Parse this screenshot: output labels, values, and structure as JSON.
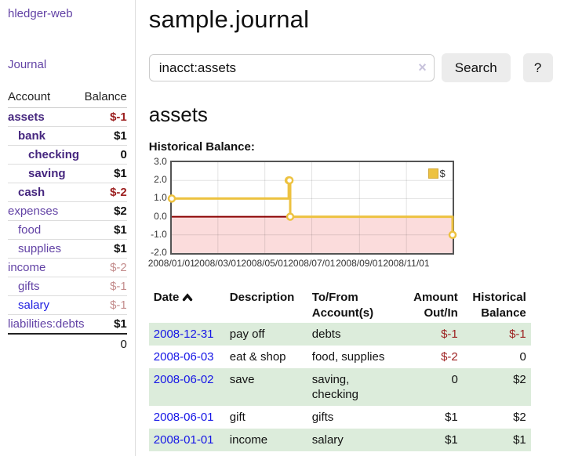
{
  "theme": {
    "link_purple": "#6242a5",
    "link_purple_bold": "#46277f",
    "link_blue": "#1d1de0",
    "date_link_blue": "#1515e6",
    "negative_strong": "#9c1f1f",
    "negative_faded": "#c48d8d",
    "row_stripe_green": "#dcecdb",
    "chart_line_gold": "#edc240",
    "chart_border_gray": "#545454",
    "chart_negative_fill": "#fbdcdc",
    "chart_zero_line": "#8b0000"
  },
  "sidebar": {
    "brand": "hledger-web",
    "nav_journal": "Journal",
    "accounts": {
      "header_account": "Account",
      "header_balance": "Balance",
      "rows": [
        {
          "name": "assets",
          "indent": 0,
          "bold": true,
          "balance": "$-1",
          "neg": "strong"
        },
        {
          "name": "bank",
          "indent": 1,
          "bold": true,
          "balance": "$1",
          "neg": null
        },
        {
          "name": "checking",
          "indent": 2,
          "bold": true,
          "balance": "0",
          "neg": null
        },
        {
          "name": "saving",
          "indent": 2,
          "bold": true,
          "balance": "$1",
          "neg": null
        },
        {
          "name": "cash",
          "indent": 1,
          "bold": true,
          "balance": "$-2",
          "neg": "strong"
        },
        {
          "name": "expenses",
          "indent": 0,
          "bold": false,
          "balance": "$2",
          "neg": null
        },
        {
          "name": "food",
          "indent": 1,
          "bold": false,
          "balance": "$1",
          "neg": null
        },
        {
          "name": "supplies",
          "indent": 1,
          "bold": false,
          "balance": "$1",
          "neg": null
        },
        {
          "name": "income",
          "indent": 0,
          "bold": false,
          "balance": "$-2",
          "neg": "faded"
        },
        {
          "name": "gifts",
          "indent": 1,
          "bold": false,
          "balance": "$-1",
          "neg": "faded"
        },
        {
          "name": "salary",
          "indent": 1,
          "bold": false,
          "balance": "$-1",
          "neg": "faded",
          "blue": true
        },
        {
          "name": "liabilities:debts",
          "indent": 0,
          "bold": false,
          "balance": "$1",
          "neg": null
        }
      ],
      "total": "0"
    }
  },
  "main": {
    "title": "sample.journal",
    "search": {
      "value": "inacct:assets",
      "clear_icon": "×",
      "search_button": "Search",
      "help_button": "?"
    },
    "account_heading": "assets",
    "section_heading": "Historical Balance:",
    "register": {
      "columns": [
        {
          "label": "Date",
          "align": "left",
          "sorted": "asc"
        },
        {
          "label": "Description",
          "align": "left"
        },
        {
          "label": "To/From Account(s)",
          "align": "left"
        },
        {
          "label": "Amount Out/In",
          "align": "right"
        },
        {
          "label": "Historical Balance",
          "align": "right"
        }
      ],
      "rows": [
        {
          "date": "2008-12-31",
          "description": "pay off",
          "accounts": "debts",
          "amount": "$-1",
          "amount_negative": true,
          "balance": "$-1",
          "balance_negative": true
        },
        {
          "date": "2008-06-03",
          "description": "eat & shop",
          "accounts": "food, supplies",
          "amount": "$-2",
          "amount_negative": true,
          "balance": "0",
          "balance_negative": false
        },
        {
          "date": "2008-06-02",
          "description": "save",
          "accounts": "saving, checking",
          "amount": "0",
          "amount_negative": false,
          "balance": "$2",
          "balance_negative": false
        },
        {
          "date": "2008-06-01",
          "description": "gift",
          "accounts": "gifts",
          "amount": "$1",
          "amount_negative": false,
          "balance": "$2",
          "balance_negative": false
        },
        {
          "date": "2008-01-01",
          "description": "income",
          "accounts": "salary",
          "amount": "$1",
          "amount_negative": false,
          "balance": "$1",
          "balance_negative": false
        }
      ]
    }
  },
  "chart_data": {
    "type": "line",
    "style": "step",
    "title": "Historical Balance",
    "legend": [
      {
        "label": "$",
        "color": "#edc240"
      }
    ],
    "legend_position": "top-right",
    "grid": true,
    "x_range": [
      "2008-01-01",
      "2008-12-31"
    ],
    "x_ticks": [
      "2008/01/01",
      "2008/03/01",
      "2008/05/01",
      "2008/07/01",
      "2008/09/01",
      "2008/11/01"
    ],
    "ylim": [
      -2,
      3
    ],
    "y_ticks": [
      3.0,
      2.0,
      1.0,
      0.0,
      -1.0,
      -2.0
    ],
    "series": [
      {
        "name": "$",
        "color": "#edc240",
        "points": [
          [
            "2008-01-01",
            1
          ],
          [
            "2008-06-01",
            2
          ],
          [
            "2008-06-02",
            2
          ],
          [
            "2008-06-03",
            0
          ],
          [
            "2008-12-31",
            -1
          ]
        ]
      }
    ],
    "negative_region_fill": "#fbdcdc",
    "zero_line_color": "#8b0000"
  }
}
